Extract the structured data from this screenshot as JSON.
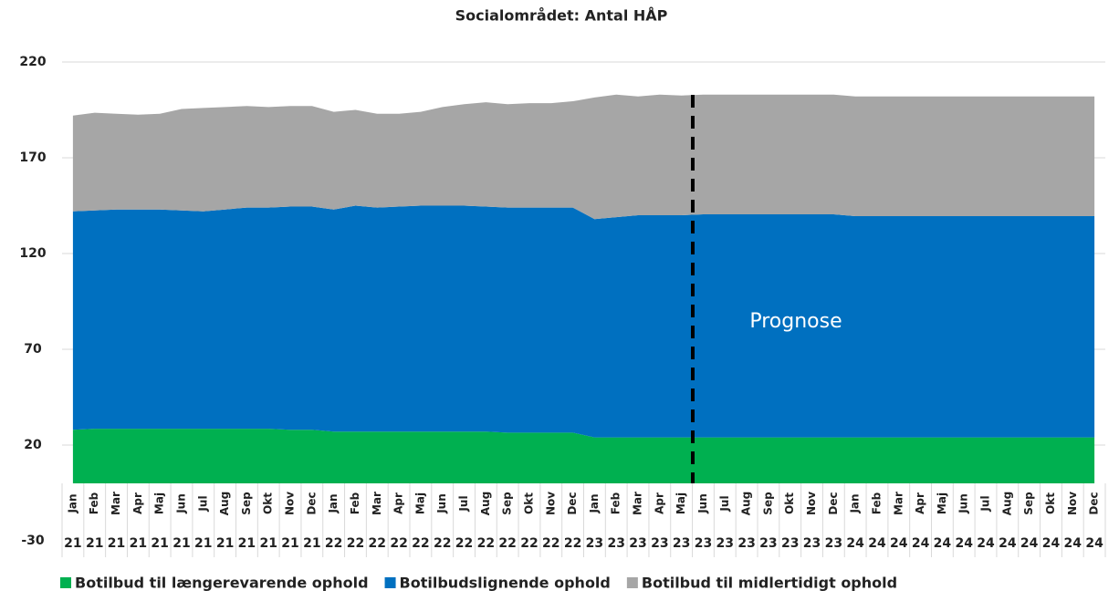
{
  "chart_data": {
    "type": "stacked_area",
    "title": "Socialområdet: Antal HÅP",
    "annotation": "Prognose",
    "categories": [
      "Jan",
      "Feb",
      "Mar",
      "Apr",
      "Maj",
      "Jun",
      "Jul",
      "Aug",
      "Sep",
      "Okt",
      "Nov",
      "Dec",
      "Jan",
      "Feb",
      "Mar",
      "Apr",
      "Maj",
      "Jun",
      "Jul",
      "Aug",
      "Sep",
      "Okt",
      "Nov",
      "Dec",
      "Jan",
      "Feb",
      "Mar",
      "Apr",
      "Maj",
      "Jun",
      "Jul",
      "Aug",
      "Sep",
      "Okt",
      "Nov",
      "Dec",
      "Jan",
      "Feb",
      "Mar",
      "Apr",
      "Maj",
      "Jun",
      "Jul",
      "Aug",
      "Sep",
      "Okt",
      "Nov",
      "Dec"
    ],
    "category_years": [
      "21",
      "21",
      "21",
      "21",
      "21",
      "21",
      "21",
      "21",
      "21",
      "21",
      "21",
      "21",
      "22",
      "22",
      "22",
      "22",
      "22",
      "22",
      "22",
      "22",
      "22",
      "22",
      "22",
      "22",
      "23",
      "23",
      "23",
      "23",
      "23",
      "23",
      "23",
      "23",
      "23",
      "23",
      "23",
      "23",
      "24",
      "24",
      "24",
      "24",
      "24",
      "24",
      "24",
      "24",
      "24",
      "24",
      "24",
      "24"
    ],
    "series": [
      {
        "name": "Botilbud til længerevarende ophold",
        "color": "#00b050",
        "values": [
          28,
          28.5,
          28.5,
          28.5,
          28.5,
          28.5,
          28.5,
          28.5,
          28.5,
          28.5,
          28,
          28,
          27,
          27,
          27,
          27,
          27,
          27,
          27,
          27,
          26.5,
          26.5,
          26.5,
          26.5,
          24,
          24,
          24,
          24,
          24,
          24,
          24,
          24,
          24,
          24,
          24,
          24,
          24,
          24,
          24,
          24,
          24,
          24,
          24,
          24,
          24,
          24,
          24,
          24
        ]
      },
      {
        "name": "Botilbudslignende ophold",
        "color": "#0070c0",
        "values": [
          114,
          114,
          114.5,
          114.5,
          114.5,
          114,
          113.5,
          114.5,
          115.5,
          115.5,
          116.5,
          116.5,
          116,
          118,
          117,
          117.5,
          118,
          118,
          118,
          117.5,
          117.5,
          117.5,
          117.5,
          117.5,
          114,
          115,
          116,
          116,
          116,
          116.5,
          116.5,
          116.5,
          116.5,
          116.5,
          116.5,
          116.5,
          115.5,
          115.5,
          115.5,
          115.5,
          115.5,
          115.5,
          115.5,
          115.5,
          115.5,
          115.5,
          115.5,
          115.5
        ]
      },
      {
        "name": "Botilbud til midlertidigt ophold",
        "color": "#a6a6a6",
        "values": [
          50,
          51,
          50,
          49.5,
          50,
          53,
          54,
          53.5,
          53,
          52.5,
          52.5,
          52.5,
          51,
          50,
          49,
          48.5,
          49,
          51.5,
          53,
          54.5,
          54,
          54.5,
          54.5,
          55.5,
          63.5,
          64,
          62,
          63,
          62.5,
          62.5,
          62.5,
          62.5,
          62.5,
          62.5,
          62.5,
          62.5,
          62.5,
          62.5,
          62.5,
          62.5,
          62.5,
          62.5,
          62.5,
          62.5,
          62.5,
          62.5,
          62.5,
          62.5
        ]
      }
    ],
    "ylim": [
      -30,
      220
    ],
    "yticks": [
      -30,
      20,
      70,
      120,
      170,
      220
    ],
    "grid": true
  }
}
